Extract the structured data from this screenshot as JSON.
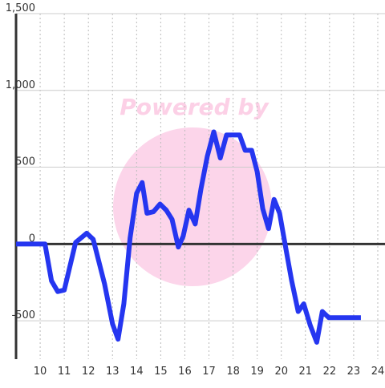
{
  "chart_data": {
    "type": "line",
    "watermark": "Powered by",
    "x": [
      9.0,
      10.2,
      10.47,
      10.73,
      11.0,
      11.47,
      11.93,
      12.2,
      12.67,
      13.0,
      13.23,
      13.47,
      13.73,
      14.0,
      14.23,
      14.43,
      14.7,
      14.97,
      15.23,
      15.47,
      15.73,
      15.93,
      16.17,
      16.43,
      16.67,
      16.93,
      17.2,
      17.47,
      17.73,
      18.03,
      18.27,
      18.5,
      18.77,
      19.0,
      19.23,
      19.47,
      19.7,
      19.93,
      20.2,
      20.43,
      20.7,
      20.93,
      21.2,
      21.47,
      21.7,
      21.97,
      23.3
    ],
    "series": [
      {
        "color": "#2536f0",
        "values": [
          0,
          0,
          -240,
          -310,
          -300,
          10,
          70,
          30,
          -260,
          -520,
          -620,
          -390,
          40,
          330,
          400,
          200,
          210,
          260,
          220,
          160,
          -20,
          50,
          220,
          130,
          360,
          570,
          730,
          560,
          710,
          710,
          710,
          610,
          610,
          470,
          230,
          100,
          290,
          200,
          -40,
          -240,
          -440,
          -390,
          -530,
          -640,
          -440,
          -480,
          -480
        ]
      }
    ],
    "xlim": [
      9,
      24.3
    ],
    "xticks": [
      10,
      11,
      12,
      13,
      14,
      15,
      16,
      17,
      18,
      19,
      20,
      21,
      22,
      23,
      24
    ],
    "ylim": [
      -750,
      1500
    ],
    "yticks": [
      -500,
      0,
      500,
      {
        "value": 1000,
        "label": "1,000"
      },
      {
        "value": 1500,
        "label": "1,500"
      }
    ],
    "grid": true
  }
}
